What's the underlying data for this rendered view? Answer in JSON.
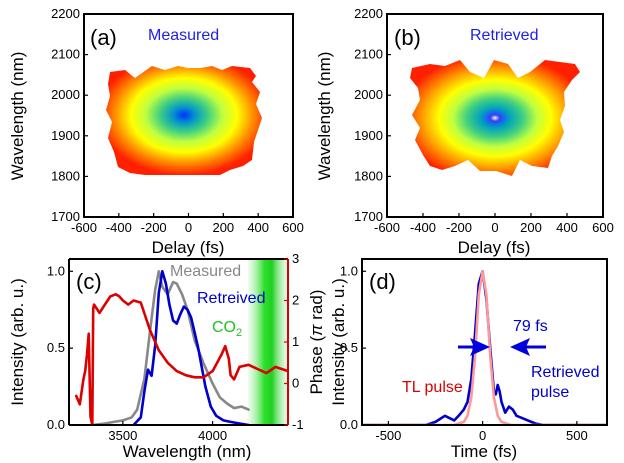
{
  "chart_data": [
    {
      "panel": "(a)",
      "type": "heatmap",
      "title": "Measured",
      "xlabel": "Delay (fs)",
      "ylabel": "Wavelength (nm)",
      "xlim": [
        -600,
        600
      ],
      "ylim": [
        1700,
        2200
      ],
      "x_ticks": [
        "-600",
        "-400",
        "-200",
        "0",
        "200",
        "400",
        "600"
      ],
      "y_ticks": [
        "1700",
        "1800",
        "1900",
        "2000",
        "2100",
        "2200"
      ],
      "peak": {
        "delay": 0,
        "wavelength": 1910
      },
      "extent": {
        "delay": [
          -420,
          440
        ],
        "wavelength": [
          1800,
          2000
        ]
      },
      "colormap": [
        "#ff1a00",
        "#ff8000",
        "#ffff00",
        "#80ff40",
        "#00c8a0",
        "#0040ff"
      ]
    },
    {
      "panel": "(b)",
      "type": "heatmap",
      "title": "Retrieved",
      "xlabel": "Delay (fs)",
      "ylabel": "Wavelength (nm)",
      "xlim": [
        -600,
        600
      ],
      "ylim": [
        1700,
        2200
      ],
      "x_ticks": [
        "-600",
        "-400",
        "-200",
        "0",
        "200",
        "400",
        "600"
      ],
      "y_ticks": [
        "1700",
        "1800",
        "1900",
        "2000",
        "2100",
        "2200"
      ],
      "peak": {
        "delay": 0,
        "wavelength": 1895
      },
      "extent": {
        "delay": [
          -430,
          440
        ],
        "wavelength": [
          1800,
          2030
        ]
      },
      "colormap": [
        "#ff1a00",
        "#ff8000",
        "#ffff00",
        "#80ff40",
        "#00c8a0",
        "#0040ff",
        "#ffffff"
      ]
    },
    {
      "panel": "(c)",
      "type": "line",
      "xlabel": "Wavelength (nm)",
      "ylabel": "Intensity (arb. u.)",
      "y2label": "Phase (π rad)",
      "xlim": [
        3200,
        4420
      ],
      "ylim": [
        0,
        1.08
      ],
      "y2lim": [
        -1,
        3
      ],
      "x_ticks": [
        "3500",
        "4000"
      ],
      "y_ticks": [
        "0.0",
        "0.5",
        "1.0"
      ],
      "y2_ticks": [
        "-1",
        "0",
        "1",
        "2",
        "3"
      ],
      "annotation": "CO₂",
      "co2_band": [
        4200,
        4420
      ],
      "series": [
        {
          "name": "Measured",
          "color": "#888888",
          "x": [
            3330,
            3400,
            3450,
            3500,
            3550,
            3580,
            3620,
            3650,
            3680,
            3700,
            3720,
            3750,
            3780,
            3800,
            3830,
            3860,
            3900,
            3950,
            4000,
            4040,
            4080,
            4120,
            4160,
            4200
          ],
          "y": [
            0.0,
            0.01,
            0.02,
            0.03,
            0.05,
            0.1,
            0.3,
            0.6,
            0.88,
            1.0,
            0.9,
            0.85,
            0.93,
            0.92,
            0.85,
            0.75,
            0.55,
            0.4,
            0.27,
            0.18,
            0.14,
            0.11,
            0.12,
            0.1
          ]
        },
        {
          "name": "Retreived",
          "color": "#0000cc",
          "x": [
            3560,
            3600,
            3620,
            3640,
            3660,
            3680,
            3700,
            3720,
            3740,
            3760,
            3780,
            3800,
            3820,
            3840,
            3860,
            3880,
            3900,
            3920,
            3960,
            3990,
            4020,
            4060,
            4100,
            4150,
            4200
          ],
          "y": [
            0.0,
            0.05,
            0.22,
            0.36,
            0.32,
            0.52,
            0.86,
            1.0,
            0.92,
            0.78,
            0.68,
            0.66,
            0.72,
            0.77,
            0.75,
            0.7,
            0.6,
            0.5,
            0.25,
            0.12,
            0.06,
            0.03,
            0.02,
            0.01,
            0.0
          ]
        },
        {
          "name": "Phase",
          "color": "#dd0000",
          "axis": "right",
          "x": [
            3240,
            3260,
            3280,
            3290,
            3300,
            3310,
            3320,
            3330,
            3335,
            3340,
            3370,
            3400,
            3430,
            3460,
            3480,
            3500,
            3530,
            3560,
            3600,
            3650,
            3700,
            3750,
            3800,
            3850,
            3900,
            3950,
            4000,
            4050,
            4070,
            4090,
            4100,
            4120,
            4150,
            4200,
            4250,
            4300,
            4350,
            4420
          ],
          "y": [
            -0.3,
            -0.5,
            0.1,
            0.3,
            0.7,
            1.2,
            -0.8,
            -1.0,
            1.8,
            1.9,
            1.7,
            1.9,
            2.1,
            2.15,
            2.1,
            2.0,
            1.9,
            2.0,
            1.95,
            1.3,
            0.8,
            0.5,
            0.3,
            0.2,
            0.15,
            0.15,
            0.3,
            0.7,
            0.9,
            0.6,
            0.2,
            0.1,
            0.4,
            0.45,
            0.35,
            0.25,
            0.4,
            0.3
          ]
        }
      ]
    },
    {
      "panel": "(d)",
      "type": "line",
      "xlabel": "Time (fs)",
      "ylabel": "Intensity (arb. u.)",
      "xlim": [
        -640,
        660
      ],
      "ylim": [
        0,
        1.08
      ],
      "x_ticks": [
        "-500",
        "0",
        "500"
      ],
      "y_ticks": [
        "0.0",
        "0.5",
        "1.0"
      ],
      "annotations": {
        "fwhm": "79 fs",
        "tl_label": "TL pulse",
        "retrieved_label_1": "Retrieved",
        "retrieved_label_2": "pulse"
      },
      "series": [
        {
          "name": "Retrieved pulse",
          "color": "#0000cc",
          "x": [
            -640,
            -300,
            -250,
            -200,
            -150,
            -120,
            -100,
            -80,
            -60,
            -40,
            -20,
            0,
            20,
            40,
            60,
            70,
            80,
            90,
            100,
            120,
            140,
            160,
            180,
            200,
            240,
            280,
            320,
            660
          ],
          "y": [
            0,
            0,
            0.02,
            0.06,
            0.03,
            0.07,
            0.1,
            0.15,
            0.3,
            0.6,
            0.92,
            1.0,
            0.82,
            0.5,
            0.22,
            0.2,
            0.26,
            0.22,
            0.15,
            0.08,
            0.12,
            0.1,
            0.06,
            0.05,
            0.03,
            0.01,
            0,
            0
          ]
        },
        {
          "name": "TL pulse",
          "color": "#ff9999",
          "x": [
            -640,
            -200,
            -150,
            -100,
            -80,
            -60,
            -40,
            -20,
            0,
            20,
            40,
            60,
            80,
            100,
            150,
            200,
            660
          ],
          "y": [
            0,
            0,
            0.0,
            0.02,
            0.06,
            0.18,
            0.45,
            0.85,
            1.0,
            0.85,
            0.45,
            0.18,
            0.06,
            0.02,
            0.0,
            0,
            0
          ]
        }
      ]
    }
  ],
  "labels": {
    "measured": "Measured",
    "retrieved": "Retrieved",
    "retreived": "Retreived",
    "co2": "CO",
    "co2_sub": "2",
    "fwhm": "79 fs",
    "tl_pulse": "TL pulse",
    "retrieved_pulse_1": "Retrieved",
    "retrieved_pulse_2": "pulse",
    "panel_a": "(a)",
    "panel_b": "(b)",
    "panel_c": "(c)",
    "panel_d": "(d)",
    "phase_label_prefix": "Phase (",
    "phase_label_pi": "π",
    "phase_label_suffix": " rad)"
  }
}
